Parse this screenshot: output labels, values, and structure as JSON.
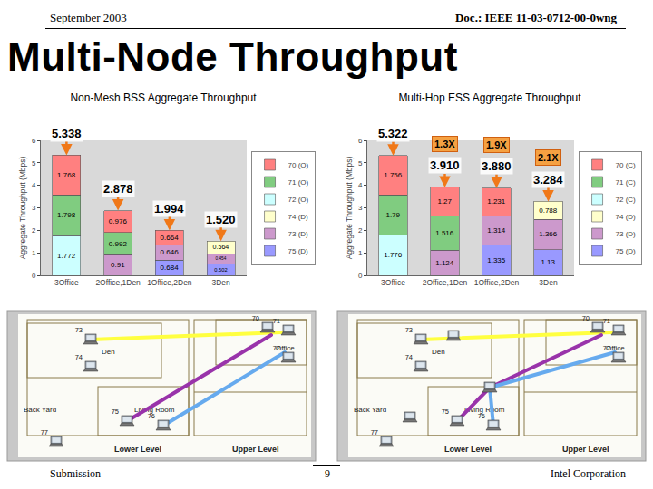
{
  "header": {
    "date": "September 2003",
    "doc": "Doc.: IEEE 11-03-0712-00-0wng"
  },
  "title": "Multi-Node Throughput",
  "chart_data": [
    {
      "type": "bar",
      "stacked": true,
      "data_labels": true,
      "grid": false,
      "legend": "right",
      "title": "Non-Mesh BSS Aggregate Throughput",
      "y_label": "Aggregate Throughput (Mbps)",
      "categories": [
        "3Office",
        "2Office,1Den",
        "1Office,2Den",
        "3Den"
      ],
      "ylim": [
        0,
        6
      ],
      "yticks": [
        0,
        1,
        2,
        3,
        4,
        5,
        6
      ],
      "series": [
        {
          "name": "75 (D)",
          "color": "#9999ff",
          "values": [
            null,
            null,
            0.684,
            0.502
          ]
        },
        {
          "name": "73 (D)",
          "color": "#cc99cc",
          "values": [
            null,
            0.91,
            0.646,
            0.454
          ]
        },
        {
          "name": "74 (D)",
          "color": "#ffffcc",
          "values": [
            null,
            null,
            null,
            0.564
          ]
        },
        {
          "name": "72 (O)",
          "color": "#ccffff",
          "values": [
            1.772,
            null,
            null,
            null
          ]
        },
        {
          "name": "71 (O)",
          "color": "#80cc80",
          "values": [
            1.798,
            0.992,
            null,
            null
          ]
        },
        {
          "name": "70 (O)",
          "color": "#ff8080",
          "values": [
            1.768,
            0.976,
            0.664,
            null
          ]
        }
      ],
      "annotations": [
        {
          "category": "3Office",
          "text": "5.338"
        },
        {
          "category": "2Office,1Den",
          "text": "2.878"
        },
        {
          "category": "1Office,2Den",
          "text": "1.994"
        },
        {
          "category": "3Den",
          "text": "1.520"
        }
      ]
    },
    {
      "type": "bar",
      "stacked": true,
      "data_labels": true,
      "grid": false,
      "legend": "right",
      "title": "Multi-Hop ESS Aggregate Throughput",
      "y_label": "Aggregate Throughput (Mbps)",
      "categories": [
        "3Office",
        "2Office,1Den",
        "1Office,2Den",
        "3Den"
      ],
      "ylim": [
        0,
        6
      ],
      "yticks": [
        0,
        1,
        2,
        3,
        4,
        5,
        6
      ],
      "series": [
        {
          "name": "75 (D)",
          "color": "#9999ff",
          "values": [
            null,
            null,
            1.335,
            1.13
          ]
        },
        {
          "name": "73 (D)",
          "color": "#cc99cc",
          "values": [
            null,
            1.124,
            1.314,
            1.366
          ]
        },
        {
          "name": "74 (D)",
          "color": "#ffffcc",
          "values": [
            null,
            null,
            null,
            0.788
          ]
        },
        {
          "name": "72 (C)",
          "color": "#ccffff",
          "values": [
            1.776,
            null,
            null,
            null
          ]
        },
        {
          "name": "71 (C)",
          "color": "#80cc80",
          "values": [
            1.79,
            1.516,
            null,
            null
          ]
        },
        {
          "name": "70 (C)",
          "color": "#ff8080",
          "values": [
            1.756,
            1.27,
            1.231,
            null
          ]
        }
      ],
      "annotations": [
        {
          "category": "3Office",
          "text": "5.322"
        },
        {
          "category": "2Office,1Den",
          "text": "3.910"
        },
        {
          "category": "1Office,2Den",
          "text": "3.880"
        },
        {
          "category": "3Den",
          "text": "3.284"
        },
        {
          "category": "2Office,1Den",
          "text": "1.3X"
        },
        {
          "category": "1Office,2Den",
          "text": "1.9X"
        },
        {
          "category": "3Den",
          "text": "2.1X"
        }
      ]
    }
  ],
  "diagrams": [
    {
      "nodes": [
        "70",
        "71",
        "72",
        "73",
        "74",
        "75",
        "76",
        "77"
      ],
      "rooms": [
        "Den",
        "Office",
        "Living Room",
        "Back Yard"
      ],
      "levels": [
        "Lower Level",
        "Upper Level"
      ]
    },
    {
      "nodes": [
        "70",
        "71",
        "72",
        "73",
        "74",
        "75",
        "76",
        "77"
      ],
      "rooms": [
        "Den",
        "Office",
        "Living Room",
        "Back Yard"
      ],
      "levels": [
        "Lower Level",
        "Upper Level"
      ]
    }
  ],
  "footer": {
    "left": "Submission",
    "page": "9",
    "right": "Intel Corporation"
  }
}
